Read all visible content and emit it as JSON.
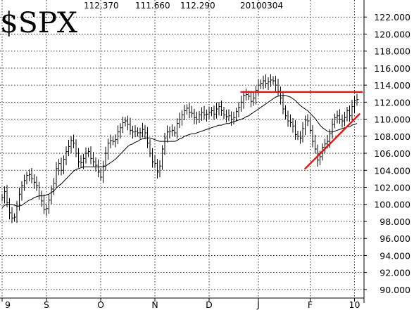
{
  "header": {
    "symbol": "$SPX",
    "open": "112.370",
    "low": "111.660",
    "close": "112.290",
    "date": "20100304"
  },
  "chart_data": {
    "type": "line",
    "title": "$SPX",
    "xlabel": "",
    "ylabel": "",
    "ylim": [
      89,
      124
    ],
    "y_ticks": [
      "90.000",
      "92.000",
      "94.000",
      "96.000",
      "98.000",
      "100.000",
      "102.000",
      "104.000",
      "106.000",
      "108.000",
      "110.000",
      "112.000",
      "114.000",
      "116.000",
      "118.000",
      "120.000",
      "122.000"
    ],
    "y_tick_values": [
      90,
      92,
      94,
      96,
      98,
      100,
      102,
      104,
      106,
      108,
      110,
      112,
      114,
      116,
      118,
      120,
      122
    ],
    "x_ticks": [
      "9",
      "S",
      "O",
      "N",
      "D",
      "J",
      "F",
      "10"
    ],
    "x_tick_values": [
      0,
      18,
      40,
      62,
      84,
      104,
      125,
      143
    ],
    "x_range": [
      0,
      146
    ],
    "grid": true,
    "series": [
      {
        "style": "price-bars",
        "color": "#000000",
        "values": [
          100.8,
          101.5,
          100.2,
          99.0,
          98.4,
          98.5,
          99.8,
          101.2,
          102.2,
          102.8,
          103.4,
          103.5,
          103.0,
          102.6,
          102.2,
          101.0,
          100.4,
          99.4,
          99.5,
          100.5,
          101.8,
          102.5,
          104.2,
          104.8,
          104.0,
          105.3,
          106.2,
          106.8,
          107.5,
          107.2,
          106.0,
          105.0,
          104.9,
          105.4,
          106.0,
          106.2,
          105.4,
          105.0,
          104.6,
          103.8,
          103.2,
          104.5,
          106.0,
          107.2,
          107.5,
          107.4,
          107.6,
          108.5,
          109.0,
          109.6,
          109.8,
          109.4,
          108.7,
          108.5,
          108.6,
          108.4,
          108.4,
          108.8,
          108.4,
          107.2,
          106.0,
          105.0,
          104.8,
          103.8,
          104.5,
          106.5,
          107.8,
          108.5,
          108.6,
          108.7,
          108.4,
          109.5,
          110.0,
          110.5,
          111.0,
          111.3,
          110.8,
          110.7,
          110.2,
          110.0,
          110.5,
          110.8,
          110.5,
          110.6,
          110.8,
          111.0,
          110.6,
          111.2,
          111.5,
          111.0,
          110.5,
          110.3,
          110.4,
          110.0,
          110.2,
          110.9,
          111.4,
          112.0,
          112.8,
          112.9,
          112.7,
          112.1,
          112.5,
          113.4,
          114.0,
          114.2,
          114.5,
          114.2,
          114.4,
          114.6,
          114.5,
          114.0,
          113.3,
          112.5,
          111.2,
          110.4,
          109.8,
          109.6,
          109.2,
          108.2,
          108.0,
          107.8,
          108.9,
          109.9,
          109.8,
          108.7,
          107.4,
          106.5,
          105.2,
          105.6,
          106.7,
          107.1,
          107.4,
          108.3,
          109.4,
          110.2,
          110.4,
          110.0,
          109.8,
          110.2,
          111.0,
          110.4,
          111.5,
          112.2,
          112.3
        ]
      },
      {
        "style": "moving-average",
        "color": "#000000",
        "values": [
          99.6,
          99.9,
          100.0,
          100.0,
          100.0,
          99.9,
          99.8,
          99.8,
          99.9,
          100.1,
          100.3,
          100.5,
          100.6,
          100.8,
          100.9,
          101.0,
          101.0,
          101.0,
          101.1,
          101.2,
          101.4,
          101.6,
          101.9,
          102.2,
          102.4,
          102.7,
          103.0,
          103.3,
          103.6,
          103.9,
          104.1,
          104.2,
          104.3,
          104.4,
          104.4,
          104.4,
          104.4,
          104.4,
          104.4,
          104.4,
          104.4,
          104.4,
          104.5,
          104.7,
          104.9,
          105.1,
          105.3,
          105.6,
          105.9,
          106.2,
          106.5,
          106.8,
          107.0,
          107.1,
          107.3,
          107.4,
          107.6,
          107.7,
          107.8,
          107.8,
          107.8,
          107.7,
          107.6,
          107.5,
          107.4,
          107.4,
          107.4,
          107.4,
          107.4,
          107.4,
          107.4,
          107.5,
          107.7,
          107.8,
          108.0,
          108.1,
          108.2,
          108.3,
          108.3,
          108.4,
          108.5,
          108.6,
          108.7,
          108.8,
          108.9,
          109.0,
          109.1,
          109.2,
          109.3,
          109.3,
          109.4,
          109.5,
          109.5,
          109.6,
          109.7,
          109.8,
          109.9,
          110.0,
          110.1,
          110.3,
          110.4,
          110.6,
          110.8,
          111.0,
          111.2,
          111.4,
          111.6,
          111.8,
          112.0,
          112.2,
          112.4,
          112.6,
          112.7,
          112.8,
          112.8,
          112.8,
          112.7,
          112.6,
          112.4,
          112.2,
          111.9,
          111.6,
          111.4,
          111.2,
          111.0,
          110.7,
          110.4,
          110.1,
          109.7,
          109.3,
          109.0,
          108.8,
          108.6,
          108.5,
          108.5,
          108.6,
          108.7,
          108.8,
          108.9,
          109.0,
          109.1,
          109.1,
          109.3,
          109.4,
          109.5
        ]
      }
    ],
    "annotations": [
      {
        "type": "resistance-line",
        "color": "#e8181a",
        "from": [
          97,
          113.2
        ],
        "to": [
          146,
          113.2
        ]
      },
      {
        "type": "trend-line",
        "color": "#e8181a",
        "from": [
          123,
          104.2
        ],
        "to": [
          145,
          110.6
        ]
      }
    ]
  }
}
